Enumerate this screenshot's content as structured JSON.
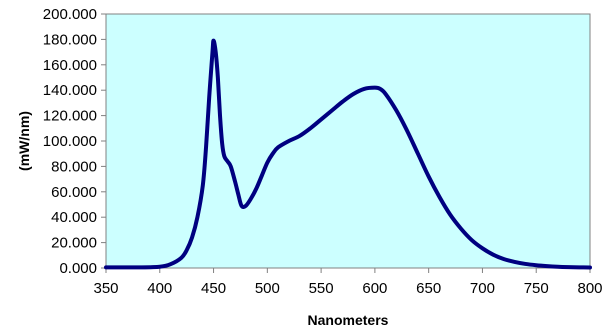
{
  "chart_data": {
    "type": "line",
    "title": "",
    "xlabel": "Nanometers",
    "ylabel": "(mW/nm)",
    "xlim": [
      350,
      800
    ],
    "ylim": [
      0,
      200
    ],
    "x_ticks": [
      350,
      400,
      450,
      500,
      550,
      600,
      650,
      700,
      750,
      800
    ],
    "x_tick_labels": [
      "350",
      "400",
      "450",
      "500",
      "550",
      "600",
      "650",
      "700",
      "750",
      "800"
    ],
    "y_ticks": [
      0,
      20,
      40,
      60,
      80,
      100,
      120,
      140,
      160,
      180,
      200
    ],
    "y_tick_labels": [
      "0.000",
      "20.000",
      "40.000",
      "60.000",
      "80.000",
      "100.000",
      "120.000",
      "140.000",
      "160.000",
      "180.000",
      "200.000"
    ],
    "grid": false,
    "plot_background": "#ccffff",
    "series": [
      {
        "color": "#000080",
        "x": [
          350,
          380,
          400,
          410,
          420,
          425,
          430,
          435,
          440,
          443,
          446,
          449,
          450,
          452,
          454,
          456,
          458,
          460,
          463,
          466,
          470,
          473,
          476,
          480,
          485,
          490,
          495,
          500,
          505,
          510,
          520,
          530,
          540,
          550,
          560,
          570,
          580,
          590,
          600,
          605,
          610,
          620,
          630,
          640,
          650,
          660,
          670,
          680,
          690,
          700,
          710,
          720,
          730,
          740,
          750,
          760,
          770,
          780,
          790,
          800
        ],
        "y": [
          0.5,
          0.5,
          1,
          3,
          8,
          14,
          24,
          40,
          65,
          95,
          135,
          170,
          179,
          170,
          150,
          120,
          98,
          88,
          84,
          80,
          68,
          58,
          49,
          49,
          55,
          63,
          73,
          83,
          90,
          95,
          100,
          104,
          110,
          117,
          124,
          131,
          137,
          141,
          142,
          141,
          137,
          124,
          108,
          90,
          72,
          56,
          42,
          31,
          22,
          15.5,
          10.5,
          7,
          4.8,
          3.2,
          2.2,
          1.5,
          1,
          0.7,
          0.5,
          0.4
        ]
      }
    ]
  }
}
